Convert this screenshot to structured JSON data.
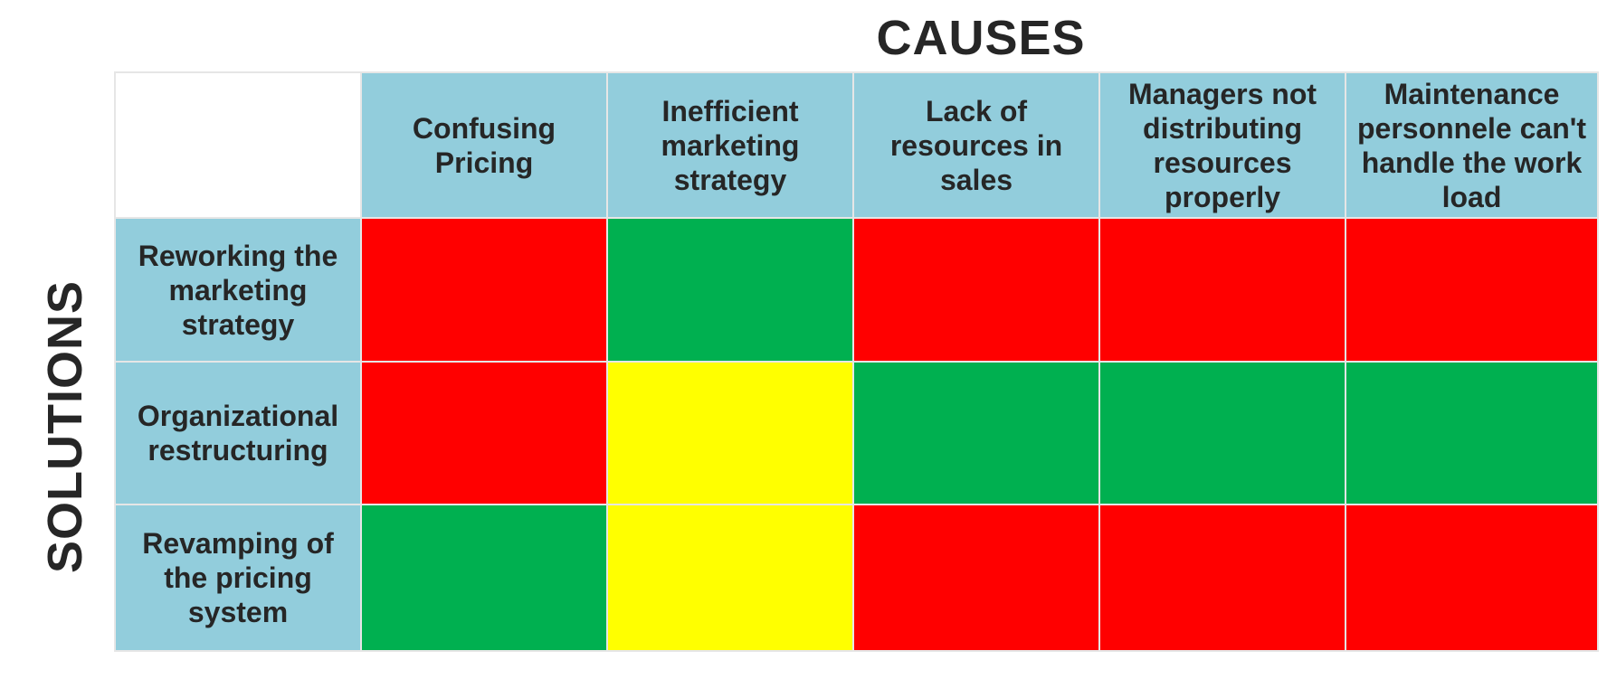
{
  "titles": {
    "columns_title": "CAUSES",
    "rows_title": "SOLUTIONS"
  },
  "colors": {
    "header": "#92cddc",
    "red": "#ff0000",
    "green": "#00b050",
    "yellow": "#ffff00"
  },
  "causes": [
    "Confusing Pricing",
    "Inefficient marketing strategy",
    "Lack of resources in sales",
    "Managers not distributing resources properly",
    "Maintenance personnele can't handle the work load"
  ],
  "solutions": [
    {
      "label": "Reworking the marketing strategy",
      "ratings": [
        "red",
        "green",
        "red",
        "red",
        "red"
      ]
    },
    {
      "label": "Organizational restructuring",
      "ratings": [
        "red",
        "yellow",
        "green",
        "green",
        "green"
      ]
    },
    {
      "label": "Revamping of the pricing system",
      "ratings": [
        "green",
        "yellow",
        "red",
        "red",
        "red"
      ]
    }
  ]
}
